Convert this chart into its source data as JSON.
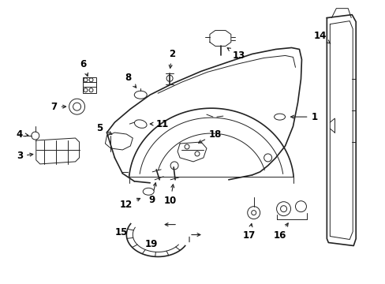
{
  "background_color": "#ffffff",
  "fig_width": 4.89,
  "fig_height": 3.6,
  "dpi": 100,
  "line_color": "#222222",
  "text_color": "#000000",
  "label_fontsize": 8.5
}
